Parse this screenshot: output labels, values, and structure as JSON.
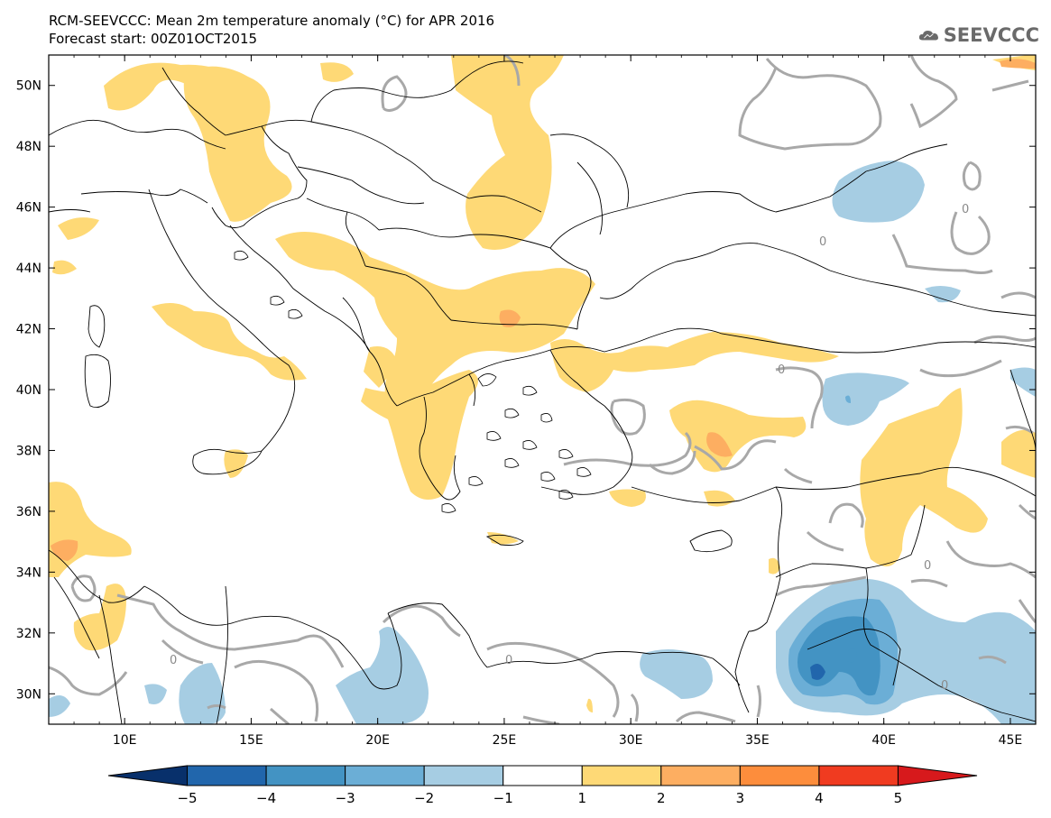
{
  "title": "RCM-SEEVCCC: Mean 2m temperature anomaly (°C) for APR 2016",
  "subtitle": "Forecast start: 00Z01OCT2015",
  "logo_text": "SEEVCCC",
  "map": {
    "lon_range": [
      7,
      46
    ],
    "lat_range": [
      29,
      51
    ],
    "lon_ticks": [
      "10E",
      "15E",
      "20E",
      "25E",
      "30E",
      "35E",
      "40E",
      "45E"
    ],
    "lat_ticks": [
      "50N",
      "48N",
      "46N",
      "44N",
      "42N",
      "40N",
      "38N",
      "36N",
      "34N",
      "32N",
      "30N"
    ],
    "contour_labels": [
      "0",
      "0",
      "0",
      "0",
      "0",
      "0",
      "0"
    ]
  },
  "colorbar": {
    "labels": [
      "−5",
      "−4",
      "−3",
      "−2",
      "−1",
      "1",
      "2",
      "3",
      "4",
      "5"
    ],
    "colors": [
      "#08306b",
      "#2166ac",
      "#4393c3",
      "#6baed6",
      "#a6cde3",
      "#ffffff",
      "#fed976",
      "#fdae61",
      "#fd8d3c",
      "#f03b20",
      "#d7191c"
    ],
    "extend": "both"
  }
}
